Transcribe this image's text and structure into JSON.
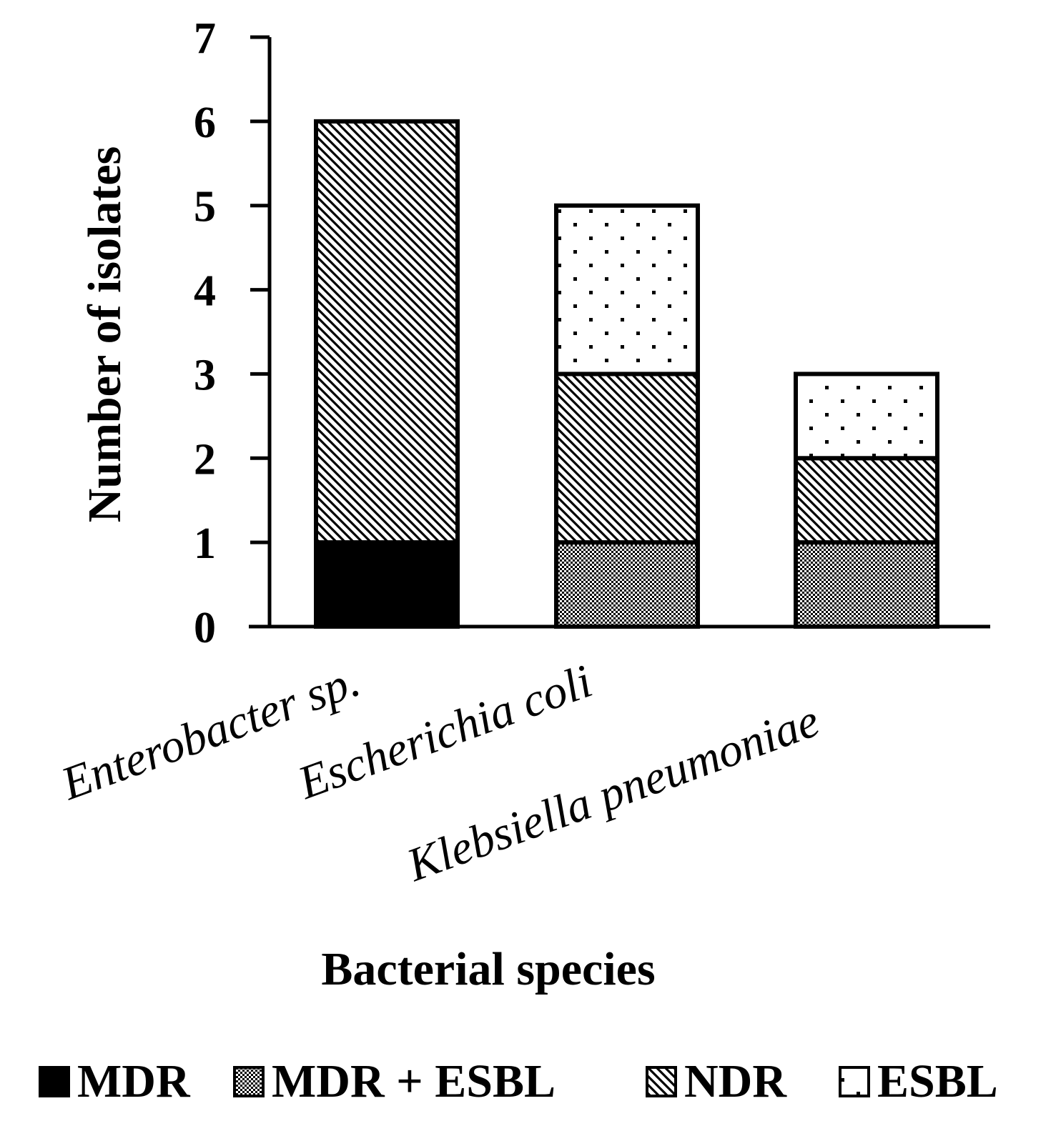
{
  "chart_data": {
    "type": "bar",
    "stacked": true,
    "categories": [
      "Enterobacter sp.",
      "Escherichia coli",
      "Klebsiella pneumoniae"
    ],
    "series": [
      {
        "name": "MDR",
        "values": [
          1,
          0,
          0
        ],
        "pattern": "solid"
      },
      {
        "name": "MDR + ESBL",
        "values": [
          0,
          1,
          1
        ],
        "pattern": "checker"
      },
      {
        "name": "NDR",
        "values": [
          5,
          2,
          1
        ],
        "pattern": "diagonal"
      },
      {
        "name": "ESBL",
        "values": [
          0,
          2,
          1
        ],
        "pattern": "dots"
      }
    ],
    "title": "",
    "xlabel": "Bacterial species",
    "ylabel": "Number of isolates",
    "ylim": [
      0,
      7
    ],
    "yticks": [
      "0",
      "1",
      "2",
      "3",
      "4",
      "5",
      "6",
      "7"
    ],
    "grid": false,
    "legend_position": "bottom",
    "colors": {
      "ink": "#000000",
      "background": "#ffffff"
    }
  }
}
